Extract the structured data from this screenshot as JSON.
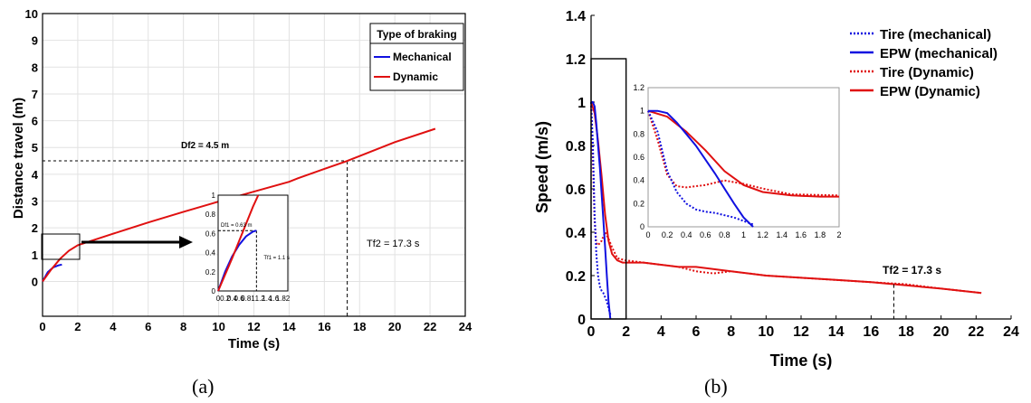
{
  "chart_data": [
    {
      "panel": "(a)",
      "type": "line",
      "xlabel": "Time (s)",
      "ylabel": "Distance travel (m)",
      "xlim": [
        0,
        24
      ],
      "ylim": [
        -1.3,
        10
      ],
      "xticks": [
        0,
        2,
        4,
        6,
        8,
        10,
        12,
        14,
        16,
        18,
        20,
        22,
        24
      ],
      "yticks": [
        0,
        1,
        2,
        3,
        4,
        5,
        6,
        7,
        8,
        9,
        10
      ],
      "grid": true,
      "legend": {
        "title": "Type of braking",
        "placement": "top-right"
      },
      "series": [
        {
          "name": "Mechanical",
          "color": "#1010e0",
          "x": [
            0,
            0.3,
            0.6,
            0.9,
            1.1
          ],
          "y": [
            0,
            0.35,
            0.52,
            0.6,
            0.63
          ]
        },
        {
          "name": "Dynamic",
          "color": "#e01010",
          "x": [
            0,
            0.5,
            1.0,
            1.5,
            2.0,
            4,
            6,
            8,
            10,
            12,
            14,
            14.5,
            16,
            17.3,
            18,
            20,
            22.3
          ],
          "y": [
            0,
            0.45,
            0.85,
            1.15,
            1.35,
            1.78,
            2.2,
            2.6,
            2.98,
            3.35,
            3.72,
            3.85,
            4.2,
            4.5,
            4.68,
            5.2,
            5.7
          ]
        }
      ],
      "annotations": {
        "df2": "Df2 = 4.5 m",
        "tf2": "Tf2 = 17.3 s",
        "df2_value": 4.5,
        "tf2_value": 17.3
      },
      "inset": {
        "xlim": [
          0,
          2
        ],
        "ylim": [
          0,
          1
        ],
        "xticks": [
          0,
          0.2,
          0.4,
          0.6,
          0.8,
          1,
          1.2,
          1.4,
          1.6,
          1.8,
          2
        ],
        "xtick_labels": [
          "0",
          "0.2",
          "0.4",
          "0.6",
          "0.8",
          "1",
          "1.2",
          "1.4",
          "1.6",
          "1.8",
          "2"
        ],
        "yticks": [
          0,
          0.2,
          0.4,
          0.6,
          0.8,
          1
        ],
        "mech": {
          "x": [
            0,
            0.2,
            0.4,
            0.6,
            0.8,
            1.0,
            1.1
          ],
          "y": [
            0,
            0.2,
            0.36,
            0.48,
            0.57,
            0.62,
            0.63
          ]
        },
        "dyn": {
          "x": [
            0,
            0.2,
            0.4,
            0.6,
            0.8,
            1.0,
            1.15
          ],
          "y": [
            0,
            0.17,
            0.34,
            0.52,
            0.7,
            0.88,
            1.0
          ]
        },
        "df1": "Df1 = 0.63 m",
        "tf1": "Tf1 = 1.1 s",
        "df1_value": 0.63,
        "tf1_value": 1.1
      }
    },
    {
      "panel": "(b)",
      "type": "line",
      "xlabel": "Time (s)",
      "ylabel": "Speed (m/s)",
      "xlim": [
        0,
        24
      ],
      "ylim": [
        0,
        1.4
      ],
      "xticks": [
        0,
        2,
        4,
        6,
        8,
        10,
        12,
        14,
        16,
        18,
        20,
        22,
        24
      ],
      "yticks": [
        0,
        0.2,
        0.4,
        0.6,
        0.8,
        1,
        1.2,
        1.4
      ],
      "grid": false,
      "legend": {
        "placement": "top-right"
      },
      "series": [
        {
          "name": "Tire  (mechanical)",
          "color": "#1010e0",
          "dash": "dotted",
          "x": [
            0,
            0.1,
            0.2,
            0.3,
            0.4,
            0.5,
            0.6,
            0.7,
            0.8,
            0.9,
            1.0,
            1.1
          ],
          "y": [
            1.0,
            0.82,
            0.48,
            0.3,
            0.2,
            0.15,
            0.13,
            0.12,
            0.1,
            0.08,
            0.05,
            0.02
          ]
        },
        {
          "name": "EPW (mechanical)",
          "color": "#1010e0",
          "dash": "solid",
          "x": [
            0,
            0.1,
            0.2,
            0.3,
            0.4,
            0.5,
            0.6,
            0.7,
            0.8,
            0.9,
            1.0,
            1.1
          ],
          "y": [
            1.0,
            1.0,
            0.98,
            0.9,
            0.8,
            0.7,
            0.58,
            0.46,
            0.33,
            0.2,
            0.08,
            0.0
          ]
        },
        {
          "name": "Tire  (Dynamic)",
          "color": "#e01010",
          "dash": "dotted",
          "x": [
            0,
            0.1,
            0.2,
            0.3,
            0.4,
            0.6,
            0.8,
            1.0,
            1.2,
            1.5,
            2.0,
            3,
            4,
            5,
            6,
            7,
            8,
            10,
            12,
            14,
            16,
            18,
            20,
            22.3
          ],
          "y": [
            1.0,
            0.75,
            0.45,
            0.35,
            0.34,
            0.36,
            0.4,
            0.37,
            0.33,
            0.28,
            0.27,
            0.26,
            0.25,
            0.24,
            0.22,
            0.21,
            0.22,
            0.2,
            0.19,
            0.18,
            0.17,
            0.16,
            0.14,
            0.12
          ]
        },
        {
          "name": "EPW (Dynamic)",
          "color": "#e01010",
          "dash": "solid",
          "x": [
            0,
            0.2,
            0.4,
            0.6,
            0.8,
            1.0,
            1.2,
            1.5,
            1.8,
            2.0,
            3,
            4,
            5,
            6,
            8,
            10,
            12,
            14,
            16,
            18,
            20,
            22.3
          ],
          "y": [
            1.0,
            0.95,
            0.82,
            0.66,
            0.48,
            0.36,
            0.3,
            0.27,
            0.26,
            0.26,
            0.26,
            0.25,
            0.24,
            0.24,
            0.22,
            0.2,
            0.19,
            0.18,
            0.17,
            0.155,
            0.14,
            0.12
          ]
        }
      ],
      "annotations": {
        "tf2": "Tf2 = 17.3 s",
        "tf2_value": 17.3
      },
      "highlight_box": {
        "x": [
          0,
          2
        ],
        "y": [
          0,
          1.2
        ]
      },
      "inset": {
        "xlim": [
          0,
          2
        ],
        "ylim": [
          0,
          1.2
        ],
        "xticks": [
          0,
          0.2,
          0.4,
          0.6,
          0.8,
          1,
          1.2,
          1.4,
          1.6,
          1.8,
          2
        ],
        "xtick_labels": [
          "0",
          "0.2",
          "0.4",
          "0.6",
          "0.8",
          "1",
          "1.2",
          "1.4",
          "1.6",
          "1.8",
          "2"
        ],
        "yticks": [
          0,
          0.2,
          0.4,
          0.6,
          0.8,
          1,
          1.2
        ]
      }
    }
  ],
  "captions": {
    "a": "(a)",
    "b": "(b)"
  }
}
